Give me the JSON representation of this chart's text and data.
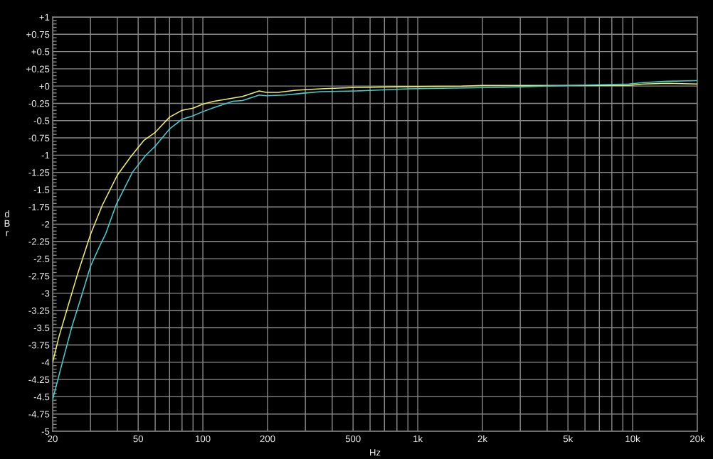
{
  "chart_data": {
    "type": "line",
    "xlabel": "Hz",
    "ylabel": "dBr",
    "log": "x",
    "grid": true,
    "xlim": [
      20,
      20000
    ],
    "xticks": [
      20,
      {
        "value": 30,
        "label": null
      },
      {
        "value": 40,
        "label": null
      },
      50,
      {
        "value": 60,
        "label": null
      },
      {
        "value": 70,
        "label": null
      },
      {
        "value": 80,
        "label": null
      },
      {
        "value": 90,
        "label": null
      },
      100,
      200,
      {
        "value": 300,
        "label": null
      },
      {
        "value": 400,
        "label": null
      },
      500,
      {
        "value": 600,
        "label": null
      },
      {
        "value": 700,
        "label": null
      },
      {
        "value": 800,
        "label": null
      },
      {
        "value": 900,
        "label": null
      },
      {
        "value": 1000,
        "label": "1k"
      },
      {
        "value": 2000,
        "label": "2k"
      },
      {
        "value": 3000,
        "label": null
      },
      {
        "value": 4000,
        "label": null
      },
      {
        "value": 5000,
        "label": "5k"
      },
      {
        "value": 6000,
        "label": null
      },
      {
        "value": 7000,
        "label": null
      },
      {
        "value": 8000,
        "label": null
      },
      {
        "value": 9000,
        "label": null
      },
      {
        "value": 10000,
        "label": "10k"
      },
      {
        "value": 20000,
        "label": "20k"
      }
    ],
    "ylim": [
      -5,
      1
    ],
    "yticks": [
      {
        "value": 1,
        "label": "+1"
      },
      {
        "value": 0.75,
        "label": "+0.75"
      },
      {
        "value": 0.5,
        "label": "+0.5"
      },
      {
        "value": 0.25,
        "label": "+0.25"
      },
      {
        "value": 0,
        "label": "+0"
      },
      {
        "value": -0.25,
        "label": "-0.25"
      },
      {
        "value": -0.5,
        "label": "-0.5"
      },
      {
        "value": -0.75,
        "label": "-0.75"
      },
      {
        "value": -1,
        "label": "-1"
      },
      {
        "value": -1.25,
        "label": "-1.25"
      },
      {
        "value": -1.5,
        "label": "-1.5"
      },
      {
        "value": -1.75,
        "label": "-1.75"
      },
      {
        "value": -2,
        "label": "-2"
      },
      {
        "value": -2.25,
        "label": "-2.25"
      },
      {
        "value": -2.5,
        "label": "-2.5"
      },
      {
        "value": -2.75,
        "label": "-2.75"
      },
      {
        "value": -3,
        "label": "-3"
      },
      {
        "value": -3.25,
        "label": "-3.25"
      },
      {
        "value": -3.5,
        "label": "-3.5"
      },
      {
        "value": -3.75,
        "label": "-3.75"
      },
      {
        "value": -4,
        "label": "-4"
      },
      {
        "value": -4.25,
        "label": "-4.25"
      },
      {
        "value": -4.5,
        "label": "-4.5"
      },
      {
        "value": -4.75,
        "label": "-4.75"
      },
      {
        "value": -5,
        "label": "-5"
      }
    ],
    "series": [
      {
        "color": "#f0f060",
        "x": [
          20,
          21.4,
          23.2,
          25.9,
          30,
          34,
          40,
          46,
          53,
          60,
          70,
          80,
          90,
          100,
          113,
          153,
          183,
          197,
          224,
          271,
          354,
          519,
          800,
          1600,
          2000,
          9600,
          11200,
          14500,
          20000
        ],
        "values": [
          -4.0,
          -3.63,
          -3.26,
          -2.76,
          -2.15,
          -1.73,
          -1.29,
          -1.03,
          -0.79,
          -0.67,
          -0.45,
          -0.35,
          -0.32,
          -0.26,
          -0.22,
          -0.15,
          -0.07,
          -0.09,
          -0.09,
          -0.06,
          -0.04,
          -0.02,
          -0.01,
          0.0,
          0.01,
          0.01,
          0.03,
          0.04,
          0.03
        ]
      },
      {
        "color": "#40d0d0",
        "x": [
          20,
          22.2,
          24.6,
          27.5,
          30,
          33.3,
          35.3,
          39.6,
          47,
          54,
          60,
          70,
          80,
          90,
          100,
          113,
          138,
          153,
          183,
          197,
          241,
          300,
          354,
          519,
          907,
          2383,
          3000,
          9600,
          11200,
          14500,
          20000
        ],
        "values": [
          -4.54,
          -4.0,
          -3.48,
          -3.0,
          -2.61,
          -2.3,
          -2.14,
          -1.71,
          -1.25,
          -1.01,
          -0.87,
          -0.62,
          -0.48,
          -0.43,
          -0.37,
          -0.31,
          -0.22,
          -0.21,
          -0.13,
          -0.14,
          -0.13,
          -0.1,
          -0.08,
          -0.07,
          -0.04,
          -0.02,
          -0.01,
          0.03,
          0.05,
          0.07,
          0.08
        ]
      }
    ]
  }
}
